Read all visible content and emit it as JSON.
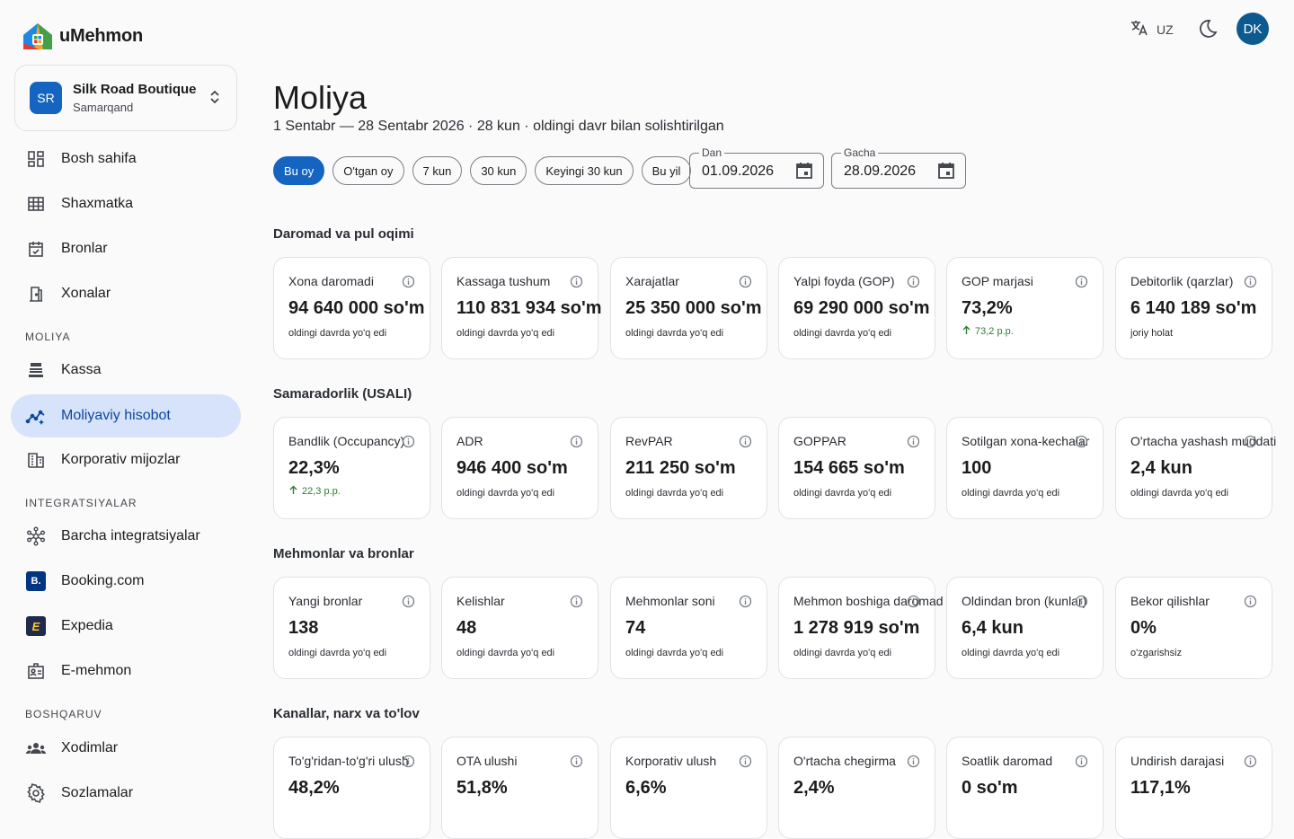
{
  "app": {
    "name": "uMehmon"
  },
  "hotel": {
    "initials": "SR",
    "name": "Silk Road Boutique",
    "city": "Samarqand"
  },
  "nav": {
    "main": [
      {
        "label": "Bosh sahifa",
        "icon": "dashboard-icon"
      },
      {
        "label": "Shaxmatka",
        "icon": "grid-icon"
      },
      {
        "label": "Bronlar",
        "icon": "calendar-check-icon"
      },
      {
        "label": "Xonalar",
        "icon": "door-icon"
      }
    ],
    "moliya_title": "MOLIYA",
    "moliya": [
      {
        "label": "Kassa",
        "icon": "cash-register-icon"
      },
      {
        "label": "Moliyaviy hisobot",
        "icon": "analytics-icon"
      },
      {
        "label": "Korporativ mijozlar",
        "icon": "building-icon"
      }
    ],
    "integ_title": "INTEGRATSIYALAR",
    "integ": [
      {
        "label": "Barcha integratsiyalar",
        "icon": "hub-icon"
      },
      {
        "label": "Booking.com",
        "icon": "booking-logo-icon"
      },
      {
        "label": "Expedia",
        "icon": "expedia-logo-icon"
      },
      {
        "label": "E-mehmon",
        "icon": "id-badge-icon"
      }
    ],
    "admin_title": "BOSHQARUV",
    "admin": [
      {
        "label": "Xodimlar",
        "icon": "people-icon"
      },
      {
        "label": "Sozlamalar",
        "icon": "gear-icon"
      }
    ]
  },
  "topbar": {
    "lang": "UZ",
    "avatar": "DK"
  },
  "page": {
    "title": "Moliya",
    "subtitle": "1 Sentabr — 28 Sentabr 2026 · 28 kun · oldingi davr bilan solishtirilgan",
    "chips": [
      "Bu oy",
      "O'tgan oy",
      "7 kun",
      "30 kun",
      "Keyingi 30 kun",
      "Bu yil"
    ],
    "from_label": "Dan",
    "from_value": "01.09.2026",
    "to_label": "Gacha",
    "to_value": "28.09.2026"
  },
  "groups": [
    {
      "title": "Daromad va pul oqimi",
      "cards": [
        {
          "label": "Xona daromadi",
          "value": "94 640 000 so'm",
          "note": "oldingi davrda yo'q edi"
        },
        {
          "label": "Kassaga tushum",
          "value": "110 831 934 so'm",
          "note": "oldingi davrda yo'q edi"
        },
        {
          "label": "Xarajatlar",
          "value": "25 350 000 so'm",
          "note": "oldingi davrda yo'q edi"
        },
        {
          "label": "Yalpi foyda (GOP)",
          "value": "69 290 000 so'm",
          "note": "oldingi davrda yo'q edi"
        },
        {
          "label": "GOP marjasi",
          "value": "73,2%",
          "note": "73,2 p.p.",
          "up": true
        },
        {
          "label": "Debitorlik (qarzlar)",
          "value": "6 140 189 so'm",
          "note": "joriy holat"
        }
      ]
    },
    {
      "title": "Samaradorlik (USALI)",
      "cards": [
        {
          "label": "Bandlik (Occupancy)",
          "value": "22,3%",
          "note": "22,3 p.p.",
          "up": true
        },
        {
          "label": "ADR",
          "value": "946 400 so'm",
          "note": "oldingi davrda yo'q edi"
        },
        {
          "label": "RevPAR",
          "value": "211 250 so'm",
          "note": "oldingi davrda yo'q edi"
        },
        {
          "label": "GOPPAR",
          "value": "154 665 so'm",
          "note": "oldingi davrda yo'q edi"
        },
        {
          "label": "Sotilgan xona-kechalar",
          "value": "100",
          "note": "oldingi davrda yo'q edi"
        },
        {
          "label": "O'rtacha yashash muddati",
          "value": "2,4 kun",
          "note": "oldingi davrda yo'q edi"
        }
      ]
    },
    {
      "title": "Mehmonlar va bronlar",
      "cards": [
        {
          "label": "Yangi bronlar",
          "value": "138",
          "note": "oldingi davrda yo'q edi"
        },
        {
          "label": "Kelishlar",
          "value": "48",
          "note": "oldingi davrda yo'q edi"
        },
        {
          "label": "Mehmonlar soni",
          "value": "74",
          "note": "oldingi davrda yo'q edi"
        },
        {
          "label": "Mehmon boshiga daromad",
          "value": "1 278 919 so'm",
          "note": "oldingi davrda yo'q edi"
        },
        {
          "label": "Oldindan bron (kunlar)",
          "value": "6,4 kun",
          "note": "oldingi davrda yo'q edi"
        },
        {
          "label": "Bekor qilishlar",
          "value": "0%",
          "note": "o'zgarishsiz"
        }
      ]
    },
    {
      "title": "Kanallar, narx va to'lov",
      "cards": [
        {
          "label": "To'g'ridan-to'g'ri ulush",
          "value": "48,2%",
          "note": "",
          "up": true
        },
        {
          "label": "OTA ulushi",
          "value": "51,8%",
          "note": "",
          "up": true
        },
        {
          "label": "Korporativ ulush",
          "value": "6,6%",
          "note": "",
          "up": true
        },
        {
          "label": "O'rtacha chegirma",
          "value": "2,4%",
          "note": "",
          "up": false
        },
        {
          "label": "Soatlik daromad",
          "value": "0 so'm",
          "note": ""
        },
        {
          "label": "Undirish darajasi",
          "value": "117,1%",
          "note": "",
          "up": true
        }
      ]
    }
  ]
}
